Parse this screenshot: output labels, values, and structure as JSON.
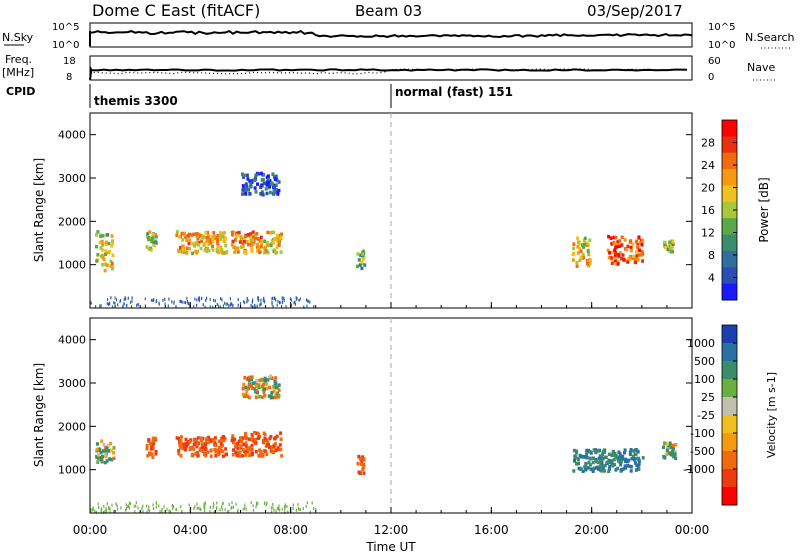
{
  "header": {
    "station": "Dome C East (fitACF)",
    "beam": "Beam 03",
    "date": "03/Sep/2017"
  },
  "top_panels": {
    "nsky_label": "N.Sky",
    "nsky_ticks": [
      "10^5",
      "10^0"
    ],
    "nsearch_label": "N.Search",
    "nsearch_ticks": [
      "10^5",
      "10^0"
    ],
    "freq_label": "Freq.",
    "freq_unit": "[MHz]",
    "freq_ticks": [
      "18",
      "8"
    ],
    "nave_label": "Nave",
    "nave_ticks": [
      "60",
      "0"
    ],
    "cpid_label": "CPID",
    "cpid_segments": [
      {
        "label": "themis 3300",
        "start_hour": 0
      },
      {
        "label": "normal (fast) 151",
        "start_hour": 12
      }
    ]
  },
  "chart_data": [
    {
      "type": "heatmap",
      "name": "power",
      "xlabel": "",
      "ylabel": "Slant Range [km]",
      "x_range_hours": [
        0,
        24
      ],
      "ylim": [
        0,
        4500
      ],
      "y_ticks": [
        1000,
        2000,
        3000,
        4000
      ],
      "colorbar": {
        "label": "Power [dB]",
        "ticks": [
          "4",
          "8",
          "12",
          "16",
          "20",
          "24",
          "28"
        ],
        "colors": [
          "#1a1aff",
          "#2a4fb0",
          "#2f6e9e",
          "#3a8c6a",
          "#5aa84a",
          "#a8c83a",
          "#f0c020",
          "#f59a10",
          "#f06a10",
          "#e83010",
          "#ff0000"
        ]
      },
      "regions": [
        {
          "t": [
            0.2,
            0.9
          ],
          "r": [
            900,
            1800
          ],
          "level": 0.55
        },
        {
          "t": [
            2.2,
            2.6
          ],
          "r": [
            1300,
            1800
          ],
          "level": 0.45
        },
        {
          "t": [
            3.4,
            5.4
          ],
          "r": [
            1300,
            1800
          ],
          "level": 0.65
        },
        {
          "t": [
            5.6,
            6.8
          ],
          "r": [
            1300,
            1800
          ],
          "level": 0.7
        },
        {
          "t": [
            6.9,
            7.6
          ],
          "r": [
            1300,
            1800
          ],
          "level": 0.6
        },
        {
          "t": [
            6.0,
            7.5
          ],
          "r": [
            2650,
            3150
          ],
          "level": 0.15
        },
        {
          "t": [
            10.6,
            10.9
          ],
          "r": [
            950,
            1350
          ],
          "level": 0.4
        },
        {
          "t": [
            19.2,
            19.9
          ],
          "r": [
            1000,
            1700
          ],
          "level": 0.6
        },
        {
          "t": [
            20.6,
            22.0
          ],
          "r": [
            1050,
            1700
          ],
          "level": 0.8
        },
        {
          "t": [
            22.8,
            23.2
          ],
          "r": [
            1300,
            1600
          ],
          "level": 0.45
        }
      ]
    },
    {
      "type": "heatmap",
      "name": "velocity",
      "xlabel": "Time UT",
      "ylabel": "Slant Range [km]",
      "x_range_hours": [
        0,
        24
      ],
      "x_ticks": [
        "00:00",
        "04:00",
        "08:00",
        "12:00",
        "16:00",
        "20:00",
        "00:00"
      ],
      "ylim": [
        0,
        4500
      ],
      "y_ticks": [
        1000,
        2000,
        3000,
        4000
      ],
      "colorbar": {
        "label": "Velocity [m s-1]",
        "ticks": [
          "1000",
          "500",
          "100",
          "25",
          "-25",
          "-100",
          "-500",
          "-1000"
        ],
        "colors": [
          "#1a3fb0",
          "#2a70a0",
          "#3a8c6a",
          "#6ab040",
          "#c0c0b0",
          "#f0c020",
          "#f59a10",
          "#f06a10",
          "#ee3a10",
          "#ff0000"
        ]
      },
      "regions": [
        {
          "t": [
            0.2,
            0.9
          ],
          "r": [
            1200,
            1700
          ],
          "velocity": 100
        },
        {
          "t": [
            2.2,
            2.6
          ],
          "r": [
            1300,
            1800
          ],
          "velocity": -500
        },
        {
          "t": [
            3.4,
            5.4
          ],
          "r": [
            1350,
            1800
          ],
          "velocity": -500
        },
        {
          "t": [
            5.6,
            7.6
          ],
          "r": [
            1350,
            1900
          ],
          "velocity": -500
        },
        {
          "t": [
            6.0,
            7.5
          ],
          "r": [
            2700,
            3200
          ],
          "velocity": 0
        },
        {
          "t": [
            10.6,
            10.9
          ],
          "r": [
            950,
            1350
          ],
          "velocity": -500
        },
        {
          "t": [
            19.2,
            22.0
          ],
          "r": [
            1000,
            1500
          ],
          "velocity": 500
        },
        {
          "t": [
            22.8,
            23.3
          ],
          "r": [
            1300,
            1650
          ],
          "velocity": 100
        }
      ]
    }
  ]
}
